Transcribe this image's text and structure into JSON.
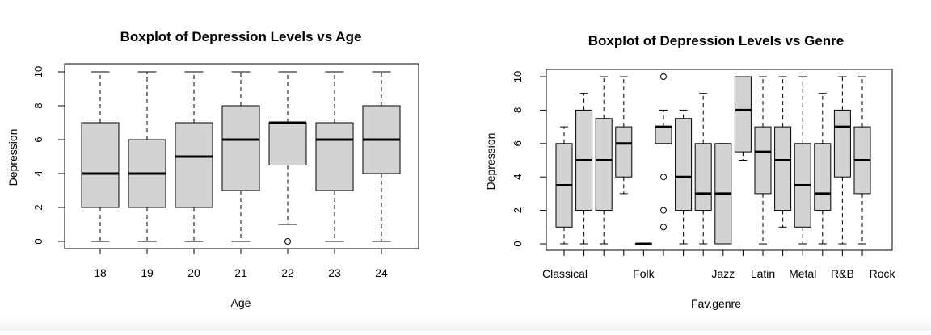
{
  "chart_data": [
    {
      "type": "boxplot",
      "title": "Boxplot of Depression Levels vs Age",
      "xlabel": "Age",
      "ylabel": "Depression",
      "ylim": [
        0,
        10
      ],
      "yticks": [
        "0",
        "2",
        "4",
        "6",
        "8",
        "10"
      ],
      "categories": [
        "18",
        "19",
        "20",
        "21",
        "22",
        "23",
        "24"
      ],
      "xtick_labels": [
        "18",
        "19",
        "20",
        "21",
        "22",
        "23",
        "24"
      ],
      "box_fill": "#d3d3d3",
      "boxes": [
        {
          "label": "18",
          "whisker_low": 0,
          "q1": 2,
          "median": 4,
          "q3": 7,
          "whisker_high": 10,
          "outliers": []
        },
        {
          "label": "19",
          "whisker_low": 0,
          "q1": 2,
          "median": 4,
          "q3": 6,
          "whisker_high": 10,
          "outliers": []
        },
        {
          "label": "20",
          "whisker_low": 0,
          "q1": 2,
          "median": 5,
          "q3": 7,
          "whisker_high": 10,
          "outliers": []
        },
        {
          "label": "21",
          "whisker_low": 0,
          "q1": 3,
          "median": 6,
          "q3": 8,
          "whisker_high": 10,
          "outliers": []
        },
        {
          "label": "22",
          "whisker_low": 1,
          "q1": 4.5,
          "median": 7,
          "q3": 7,
          "whisker_high": 10,
          "outliers": [
            0
          ]
        },
        {
          "label": "23",
          "whisker_low": 0,
          "q1": 3,
          "median": 6,
          "q3": 7,
          "whisker_high": 10,
          "outliers": []
        },
        {
          "label": "24",
          "whisker_low": 0,
          "q1": 4,
          "median": 6,
          "q3": 8,
          "whisker_high": 10,
          "outliers": []
        }
      ]
    },
    {
      "type": "boxplot",
      "title": "Boxplot of Depression Levels vs Genre",
      "xlabel": "Fav.genre",
      "ylabel": "Depression",
      "ylim": [
        0,
        10
      ],
      "yticks": [
        "0",
        "2",
        "4",
        "6",
        "8",
        "10"
      ],
      "xtick_labels": [
        "Classical",
        "",
        "Folk",
        "",
        "Jazz",
        "Latin",
        "Metal",
        "R&B",
        "Rock"
      ],
      "box_fill": "#d3d3d3",
      "boxes": [
        {
          "whisker_low": 0,
          "q1": 1,
          "median": 3.5,
          "q3": 6,
          "whisker_high": 7,
          "outliers": []
        },
        {
          "whisker_low": 0,
          "q1": 2,
          "median": 5,
          "q3": 8,
          "whisker_high": 9,
          "outliers": []
        },
        {
          "whisker_low": 0,
          "q1": 2,
          "median": 5,
          "q3": 7.5,
          "whisker_high": 10,
          "outliers": []
        },
        {
          "whisker_low": 3,
          "q1": 4,
          "median": 6,
          "q3": 7,
          "whisker_high": 10,
          "outliers": []
        },
        {
          "whisker_low": 0,
          "q1": 0,
          "median": 0,
          "q3": 0,
          "whisker_high": 0,
          "outliers": []
        },
        {
          "whisker_low": 6,
          "q1": 6,
          "median": 7,
          "q3": 7,
          "whisker_high": 8,
          "outliers": [
            10,
            4,
            2,
            1
          ]
        },
        {
          "whisker_low": 0,
          "q1": 2,
          "median": 4,
          "q3": 7.5,
          "whisker_high": 8,
          "outliers": []
        },
        {
          "whisker_low": 0,
          "q1": 2,
          "median": 3,
          "q3": 6,
          "whisker_high": 9,
          "outliers": []
        },
        {
          "whisker_low": 0,
          "q1": 0,
          "median": 3,
          "q3": 6,
          "whisker_high": 6,
          "outliers": []
        },
        {
          "whisker_low": 5,
          "q1": 5.5,
          "median": 8,
          "q3": 10,
          "whisker_high": 10,
          "outliers": []
        },
        {
          "whisker_low": 0,
          "q1": 3,
          "median": 5.5,
          "q3": 7,
          "whisker_high": 10,
          "outliers": []
        },
        {
          "whisker_low": 1,
          "q1": 2,
          "median": 5,
          "q3": 7,
          "whisker_high": 10,
          "outliers": []
        },
        {
          "whisker_low": 0,
          "q1": 1,
          "median": 3.5,
          "q3": 6,
          "whisker_high": 10,
          "outliers": []
        },
        {
          "whisker_low": 0,
          "q1": 2,
          "median": 3,
          "q3": 6,
          "whisker_high": 9,
          "outliers": []
        },
        {
          "whisker_low": 0,
          "q1": 4,
          "median": 7,
          "q3": 8,
          "whisker_high": 10,
          "outliers": []
        },
        {
          "whisker_low": 0,
          "q1": 3,
          "median": 5,
          "q3": 7,
          "whisker_high": 10,
          "outliers": []
        }
      ]
    }
  ]
}
